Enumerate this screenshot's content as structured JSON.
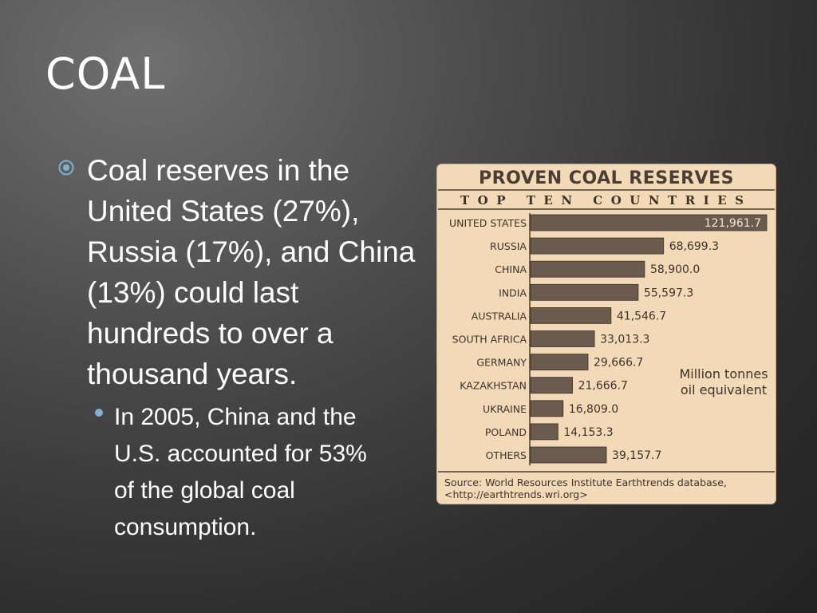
{
  "slide": {
    "title": "COAL",
    "bullets": [
      {
        "text": "Coal reserves in the United States (27%), Russia (17%), and China (13%) could last hundreds to over a thousand years.",
        "sub_bullets": [
          {
            "text": "In 2005, China and the U.S. accounted for 53% of the global coal consumption."
          }
        ]
      }
    ],
    "marker_icon": "circled-dot-icon",
    "colors": {
      "background": "#3a3a3a",
      "text": "#ffffff",
      "sub_bullet_marker": "#7fb0cf",
      "chart_background": "#f2d9b8",
      "bar_fill": "#6b5a4e",
      "chart_text": "#3d3228"
    }
  },
  "chart_data": {
    "type": "bar",
    "orientation": "horizontal",
    "title": "PROVEN COAL RESERVES",
    "subtitle": "TOP TEN COUNTRIES",
    "categories": [
      "UNITED STATES",
      "RUSSIA",
      "CHINA",
      "INDIA",
      "AUSTRALIA",
      "SOUTH AFRICA",
      "GERMANY",
      "KAZAKHSTAN",
      "UKRAINE",
      "POLAND",
      "OTHERS"
    ],
    "values": [
      121961.7,
      68699.3,
      58900.0,
      55597.3,
      41546.7,
      33013.3,
      29666.7,
      21666.7,
      16809.0,
      14153.3,
      39157.7
    ],
    "value_labels": [
      "121,961.7",
      "68,699.3",
      "58,900.0",
      "55,597.3",
      "41,546.7",
      "33,013.3",
      "29,666.7",
      "21,666.7",
      "16,809.0",
      "14,153.3",
      "39,157.7"
    ],
    "unit_label": "Million tonnes oil equivalent",
    "source": "Source: World Resources Institute Earthtrends database, <http://earthtrends.wri.org>",
    "xlim": [
      0,
      121961.7
    ],
    "grid": false
  }
}
